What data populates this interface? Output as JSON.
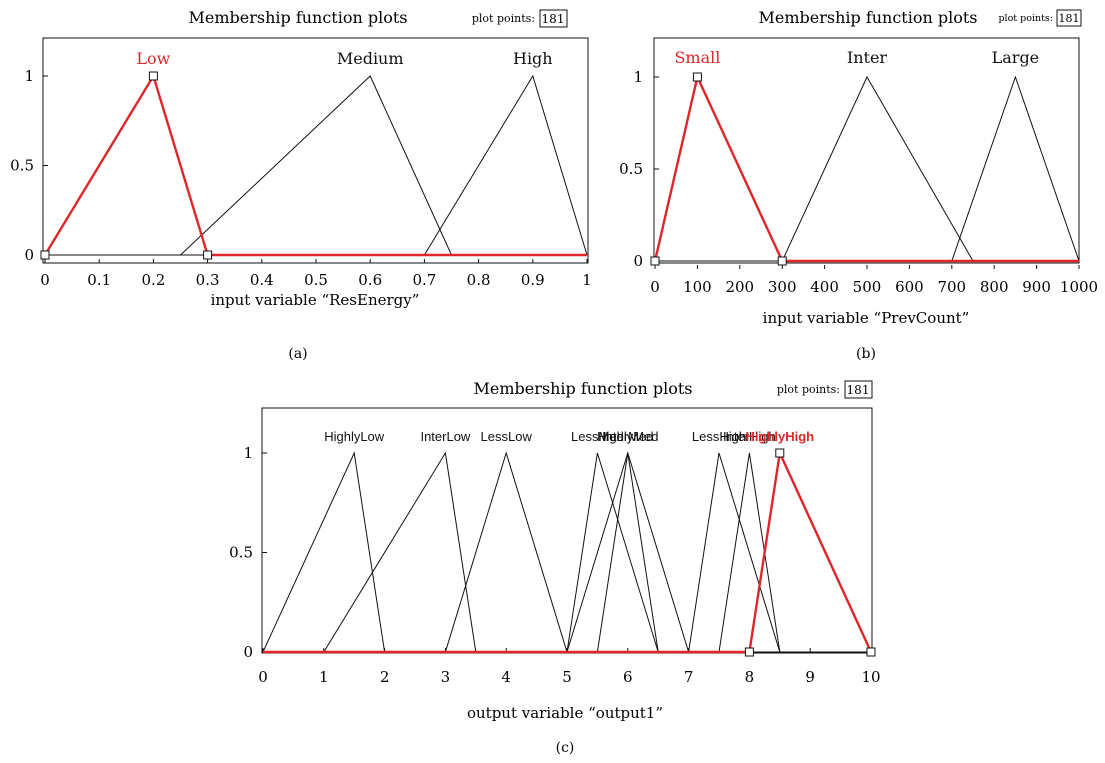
{
  "panels": [
    {
      "caption": "(a)",
      "title": "Membership function plots",
      "plot_points_label": "plot points:",
      "plot_points_value": "181"
    },
    {
      "caption": "(b)",
      "title": "Membership function plots",
      "plot_points_label": "plot points:",
      "plot_points_value": "181"
    },
    {
      "caption": "(c)",
      "title": "Membership function plots",
      "plot_points_label": "plot points:",
      "plot_points_value": "181"
    }
  ],
  "colors": {
    "highlight": "#e0262a",
    "line": "#111111",
    "axis": "#111111"
  },
  "chart_data": [
    {
      "type": "line",
      "xlabel": "input variable “ResEnergy”",
      "xlim": [
        0,
        1
      ],
      "ylim": [
        0,
        1
      ],
      "xticks": [
        "0",
        "0.1",
        "0.2",
        "0.3",
        "0.4",
        "0.5",
        "0.6",
        "0.7",
        "0.8",
        "0.9",
        "1"
      ],
      "yticks": [
        "0",
        "0.5",
        "1"
      ],
      "grid": false,
      "series": [
        {
          "name": "Low",
          "x": [
            0,
            0.2,
            0.3
          ],
          "y": [
            0,
            1,
            0
          ],
          "highlight": true
        },
        {
          "name": "Medium",
          "x": [
            0.25,
            0.6,
            0.75
          ],
          "y": [
            0,
            1,
            0
          ],
          "highlight": false
        },
        {
          "name": "High",
          "x": [
            0.7,
            0.9,
            1.0
          ],
          "y": [
            0,
            1,
            0
          ],
          "highlight": false
        }
      ]
    },
    {
      "type": "line",
      "xlabel": "input variable “PrevCount”",
      "xlim": [
        0,
        1000
      ],
      "ylim": [
        0,
        1
      ],
      "xticks": [
        "0",
        "100",
        "200",
        "300",
        "400",
        "500",
        "600",
        "700",
        "800",
        "900",
        "1000"
      ],
      "yticks": [
        "0",
        "0.5",
        "1"
      ],
      "grid": false,
      "series": [
        {
          "name": "Small",
          "x": [
            0,
            100,
            300
          ],
          "y": [
            0,
            1,
            0
          ],
          "highlight": true
        },
        {
          "name": "Inter",
          "x": [
            300,
            500,
            750
          ],
          "y": [
            0,
            1,
            0
          ],
          "highlight": false
        },
        {
          "name": "Large",
          "x": [
            700,
            850,
            1000
          ],
          "y": [
            0,
            1,
            0
          ],
          "highlight": false
        }
      ]
    },
    {
      "type": "line",
      "xlabel": "output variable “output1”",
      "xlim": [
        0,
        10
      ],
      "ylim": [
        0,
        1
      ],
      "xticks": [
        "0",
        "1",
        "2",
        "3",
        "4",
        "5",
        "6",
        "7",
        "8",
        "9",
        "10"
      ],
      "yticks": [
        "0",
        "0.5",
        "1"
      ],
      "grid": false,
      "series": [
        {
          "name": "HighlyLow",
          "x": [
            0,
            1.5,
            2
          ],
          "y": [
            0,
            1,
            0
          ],
          "highlight": false
        },
        {
          "name": "InterLow",
          "x": [
            1,
            3,
            3.5
          ],
          "y": [
            0,
            1,
            0
          ],
          "highlight": false
        },
        {
          "name": "LessLow",
          "x": [
            3,
            4,
            5
          ],
          "y": [
            0,
            1,
            0
          ],
          "highlight": false
        },
        {
          "name": "LessMed",
          "x": [
            5,
            5.5,
            6.5
          ],
          "y": [
            0,
            1,
            0
          ],
          "highlight": false
        },
        {
          "name": "HighlyMed",
          "x": [
            5,
            6,
            7
          ],
          "y": [
            0,
            1,
            0
          ],
          "highlight": false
        },
        {
          "name": "InterMed",
          "x": [
            5.5,
            6,
            6.5
          ],
          "y": [
            0,
            1,
            0
          ],
          "highlight": false
        },
        {
          "name": "LessHigh",
          "x": [
            7,
            7.5,
            8.5
          ],
          "y": [
            0,
            1,
            0
          ],
          "highlight": false
        },
        {
          "name": "InterHigh",
          "x": [
            7.5,
            8,
            8.5
          ],
          "y": [
            0,
            1,
            0
          ],
          "highlight": false
        },
        {
          "name": "HighlyHigh",
          "x": [
            8,
            8.5,
            10
          ],
          "y": [
            0,
            1,
            0
          ],
          "highlight": true
        }
      ]
    }
  ]
}
